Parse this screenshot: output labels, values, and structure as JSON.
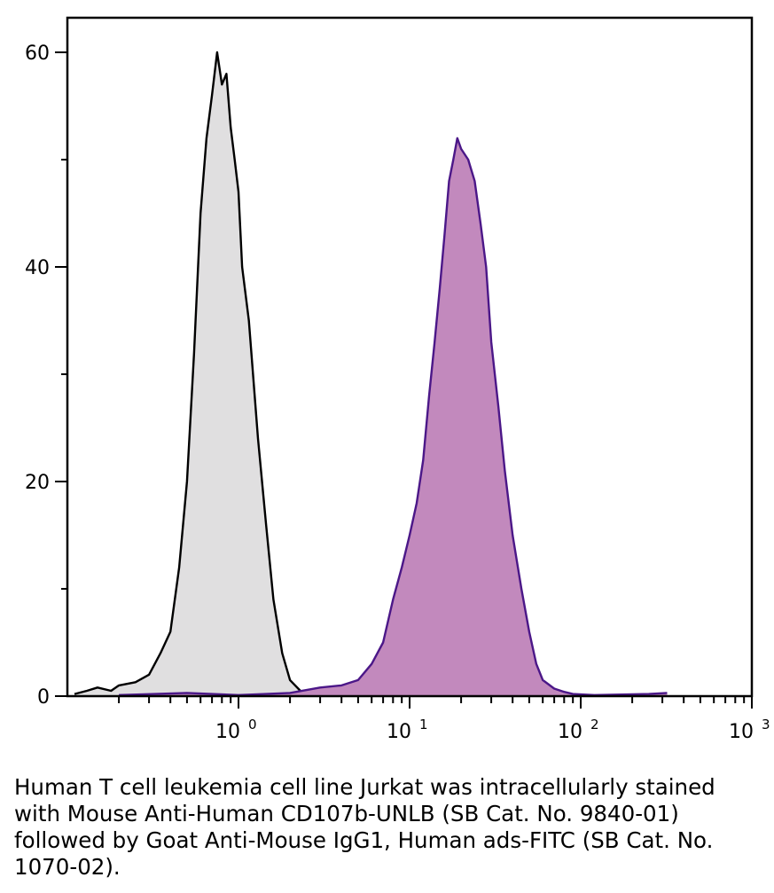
{
  "chart_data": {
    "type": "area",
    "title": "",
    "xlabel": "",
    "ylabel": "",
    "x_scale": "log",
    "xlim": [
      0.1,
      1000
    ],
    "ylim": [
      0,
      60
    ],
    "y_ticks": [
      0,
      20,
      40,
      60
    ],
    "y_minor_ticks": [
      10,
      30,
      50
    ],
    "x_ticks": [
      {
        "value": 1,
        "base": "10",
        "exp": "0"
      },
      {
        "value": 10,
        "base": "10",
        "exp": "1"
      },
      {
        "value": 100,
        "base": "10",
        "exp": "2"
      },
      {
        "value": 1000,
        "base": "10",
        "exp": "3"
      }
    ],
    "grid": false,
    "legend": "none",
    "series": [
      {
        "fill": "#e0dfe0",
        "stroke": "#000000",
        "points": [
          [
            0.11,
            0.2
          ],
          [
            0.13,
            0.5
          ],
          [
            0.15,
            0.8
          ],
          [
            0.18,
            0.5
          ],
          [
            0.2,
            1.0
          ],
          [
            0.25,
            1.3
          ],
          [
            0.3,
            2.0
          ],
          [
            0.35,
            4.0
          ],
          [
            0.4,
            6.0
          ],
          [
            0.45,
            12.0
          ],
          [
            0.5,
            20.0
          ],
          [
            0.55,
            32.0
          ],
          [
            0.6,
            45.0
          ],
          [
            0.65,
            52.0
          ],
          [
            0.7,
            56.0
          ],
          [
            0.75,
            60.0
          ],
          [
            0.8,
            57.0
          ],
          [
            0.85,
            58.0
          ],
          [
            0.9,
            53.0
          ],
          [
            0.95,
            50.0
          ],
          [
            1.0,
            47.0
          ],
          [
            1.05,
            40.0
          ],
          [
            1.15,
            35.0
          ],
          [
            1.3,
            24.0
          ],
          [
            1.45,
            16.0
          ],
          [
            1.6,
            9.0
          ],
          [
            1.8,
            4.0
          ],
          [
            2.0,
            1.5
          ],
          [
            2.3,
            0.5
          ],
          [
            2.6,
            0.1
          ]
        ]
      },
      {
        "fill": "#c289bd",
        "stroke": "#4b1788",
        "points": [
          [
            0.2,
            0.1
          ],
          [
            0.5,
            0.3
          ],
          [
            1.0,
            0.1
          ],
          [
            2.0,
            0.3
          ],
          [
            3.0,
            0.8
          ],
          [
            4.0,
            1.0
          ],
          [
            5.0,
            1.5
          ],
          [
            6.0,
            3.0
          ],
          [
            7.0,
            5.0
          ],
          [
            8.0,
            9.0
          ],
          [
            9.0,
            12.0
          ],
          [
            10.0,
            15.0
          ],
          [
            11.0,
            18.0
          ],
          [
            12.0,
            22.0
          ],
          [
            13.0,
            28.0
          ],
          [
            14.0,
            33.0
          ],
          [
            15.0,
            38.0
          ],
          [
            16.0,
            43.0
          ],
          [
            17.0,
            48.0
          ],
          [
            18.0,
            50.0
          ],
          [
            19.0,
            52.0
          ],
          [
            20.0,
            51.0
          ],
          [
            22.0,
            50.0
          ],
          [
            24.0,
            48.0
          ],
          [
            26.0,
            44.0
          ],
          [
            28.0,
            40.0
          ],
          [
            30.0,
            33.0
          ],
          [
            33.0,
            27.0
          ],
          [
            36.0,
            21.0
          ],
          [
            40.0,
            15.0
          ],
          [
            45.0,
            10.0
          ],
          [
            50.0,
            6.0
          ],
          [
            55.0,
            3.0
          ],
          [
            60.0,
            1.5
          ],
          [
            70.0,
            0.7
          ],
          [
            80.0,
            0.4
          ],
          [
            90.0,
            0.2
          ],
          [
            120.0,
            0.1
          ],
          [
            250.0,
            0.2
          ],
          [
            320.0,
            0.3
          ]
        ]
      }
    ]
  },
  "caption": "Human T cell leukemia cell line Jurkat was intracellularly stained with Mouse Anti-Human CD107b-UNLB (SB Cat. No. 9840-01) followed by Goat Anti-Mouse IgG1, Human ads-FITC (SB Cat. No. 1070-02)."
}
